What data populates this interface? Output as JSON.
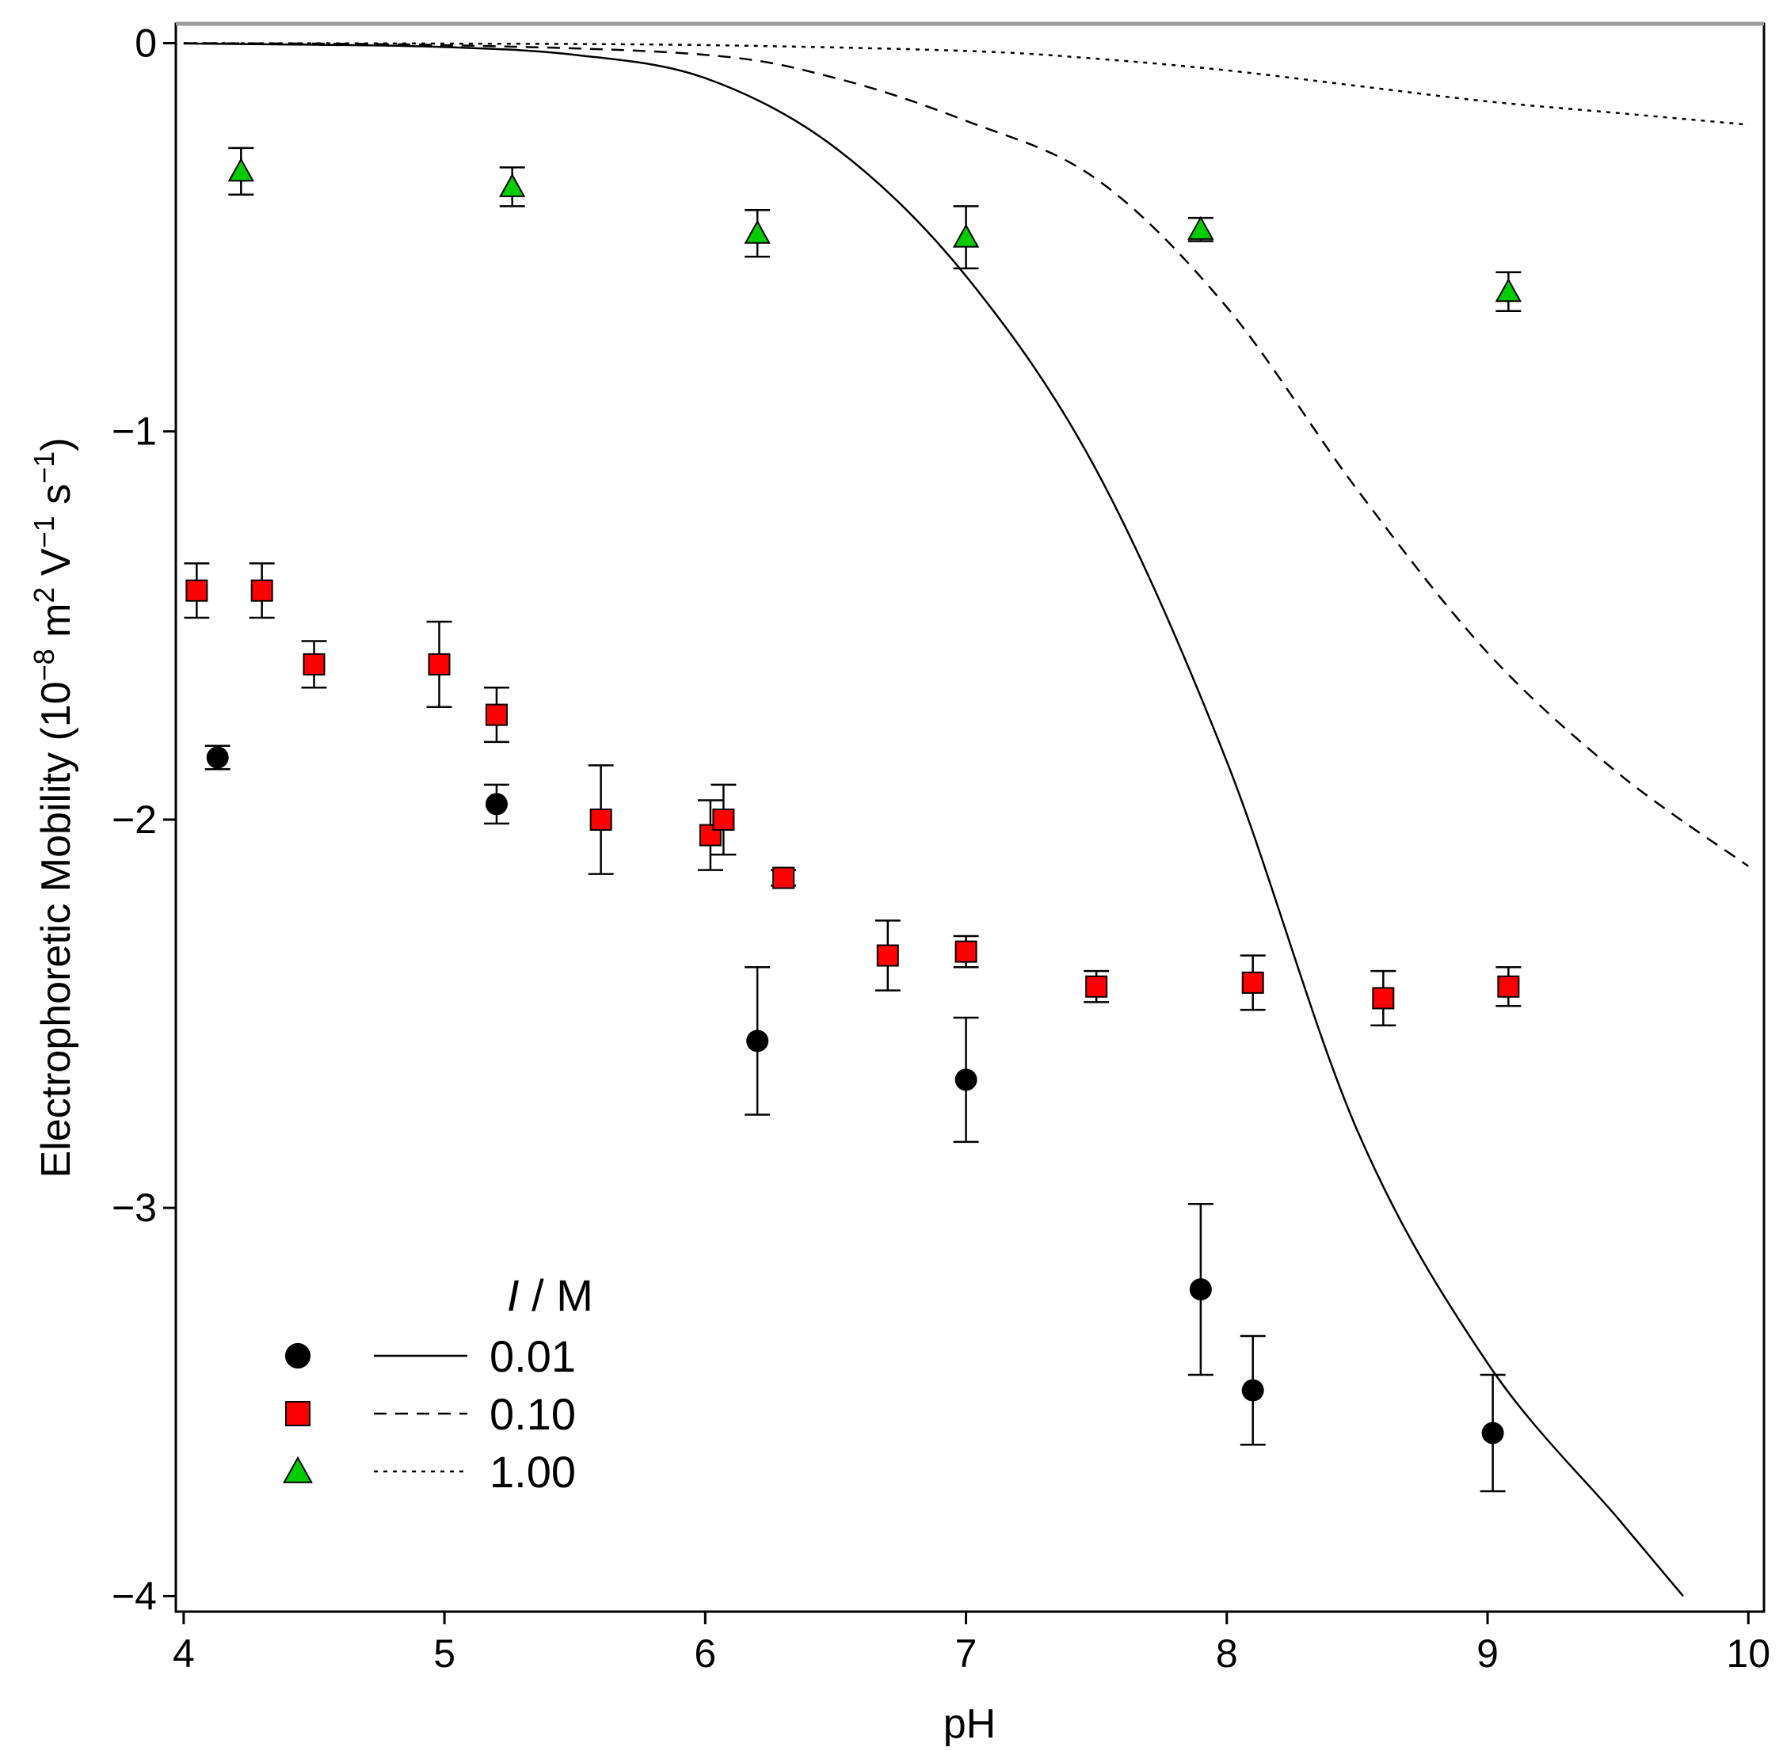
{
  "chart_data": {
    "type": "scatter",
    "title": "",
    "xlabel": "pH",
    "ylabel_parts": [
      "Electrophoretic Mobility (10",
      "−8",
      " m",
      "2",
      " V",
      "−1",
      " s",
      "−1",
      ")"
    ],
    "xlim": [
      3.97,
      10.06
    ],
    "ylim": [
      -4.04,
      0.05
    ],
    "x_ticks": [
      4,
      5,
      6,
      7,
      8,
      9,
      10
    ],
    "y_ticks": [
      0,
      -1,
      -2,
      -3,
      -4
    ],
    "x_tick_labels": [
      "4",
      "5",
      "6",
      "7",
      "8",
      "9",
      "10"
    ],
    "y_tick_labels": [
      "0",
      "−1",
      "−2",
      "−3",
      "−4"
    ],
    "legend_title_italic": "I",
    "legend_title_rest": " / M",
    "legend_position": "bottom-left",
    "series": [
      {
        "name": "0.01",
        "marker": "circle",
        "color": "#000000",
        "points": [
          {
            "x": 4.13,
            "y": -1.84,
            "err": 0.03
          },
          {
            "x": 5.2,
            "y": -1.96,
            "err": 0.05
          },
          {
            "x": 6.2,
            "y": -2.57,
            "err": 0.19
          },
          {
            "x": 7.0,
            "y": -2.67,
            "err": 0.16
          },
          {
            "x": 7.9,
            "y": -3.21,
            "err": 0.22
          },
          {
            "x": 8.1,
            "y": -3.47,
            "err": 0.14
          },
          {
            "x": 9.02,
            "y": -3.58,
            "err": 0.15
          }
        ]
      },
      {
        "name": "0.10",
        "marker": "square",
        "color": "#ff0000",
        "points": [
          {
            "x": 4.05,
            "y": -1.41,
            "err": 0.07
          },
          {
            "x": 4.3,
            "y": -1.41,
            "err": 0.07
          },
          {
            "x": 4.5,
            "y": -1.6,
            "err": 0.06
          },
          {
            "x": 4.98,
            "y": -1.6,
            "err": 0.11
          },
          {
            "x": 5.2,
            "y": -1.73,
            "err": 0.07
          },
          {
            "x": 5.6,
            "y": -2.0,
            "err": 0.14
          },
          {
            "x": 6.02,
            "y": -2.04,
            "err": 0.09
          },
          {
            "x": 6.07,
            "y": -2.0,
            "err": 0.09
          },
          {
            "x": 6.3,
            "y": -2.15,
            "err": 0.02
          },
          {
            "x": 6.7,
            "y": -2.35,
            "err": 0.09
          },
          {
            "x": 7.0,
            "y": -2.34,
            "err": 0.04
          },
          {
            "x": 7.5,
            "y": -2.43,
            "err": 0.04
          },
          {
            "x": 8.1,
            "y": -2.42,
            "err": 0.07
          },
          {
            "x": 8.6,
            "y": -2.46,
            "err": 0.07
          },
          {
            "x": 9.08,
            "y": -2.43,
            "err": 0.05
          }
        ]
      },
      {
        "name": "1.00",
        "marker": "triangle",
        "color": "#00cc00",
        "points": [
          {
            "x": 4.22,
            "y": -0.33,
            "err": 0.06
          },
          {
            "x": 5.26,
            "y": -0.37,
            "err": 0.05
          },
          {
            "x": 6.2,
            "y": -0.49,
            "err": 0.06
          },
          {
            "x": 7.0,
            "y": -0.5,
            "err": 0.08
          },
          {
            "x": 7.9,
            "y": -0.48,
            "err": 0.03
          },
          {
            "x": 9.08,
            "y": -0.64,
            "err": 0.05
          }
        ]
      }
    ],
    "model_curves": [
      {
        "name": "0.01",
        "style": "solid",
        "points": [
          [
            4.0,
            -0.001
          ],
          [
            4.5,
            -0.004
          ],
          [
            5.0,
            -0.01
          ],
          [
            5.5,
            -0.03
          ],
          [
            6.0,
            -0.09
          ],
          [
            6.5,
            -0.27
          ],
          [
            7.0,
            -0.6
          ],
          [
            7.5,
            -1.1
          ],
          [
            8.0,
            -1.85
          ],
          [
            8.5,
            -2.8
          ],
          [
            9.0,
            -3.4
          ],
          [
            9.5,
            -3.8
          ],
          [
            9.75,
            -4.0
          ]
        ]
      },
      {
        "name": "0.10",
        "style": "dashed",
        "points": [
          [
            4.0,
            0.0
          ],
          [
            5.0,
            -0.005
          ],
          [
            6.0,
            -0.03
          ],
          [
            6.5,
            -0.09
          ],
          [
            7.0,
            -0.2
          ],
          [
            7.5,
            -0.35
          ],
          [
            8.0,
            -0.68
          ],
          [
            8.5,
            -1.15
          ],
          [
            9.0,
            -1.57
          ],
          [
            9.5,
            -1.88
          ],
          [
            10.0,
            -2.12
          ]
        ]
      },
      {
        "name": "1.00",
        "style": "dotted",
        "points": [
          [
            4.0,
            0.0
          ],
          [
            5.0,
            -0.001
          ],
          [
            6.0,
            -0.005
          ],
          [
            7.0,
            -0.02
          ],
          [
            7.5,
            -0.04
          ],
          [
            8.0,
            -0.07
          ],
          [
            8.5,
            -0.11
          ],
          [
            9.0,
            -0.15
          ],
          [
            9.5,
            -0.18
          ],
          [
            10.0,
            -0.21
          ]
        ]
      }
    ]
  }
}
